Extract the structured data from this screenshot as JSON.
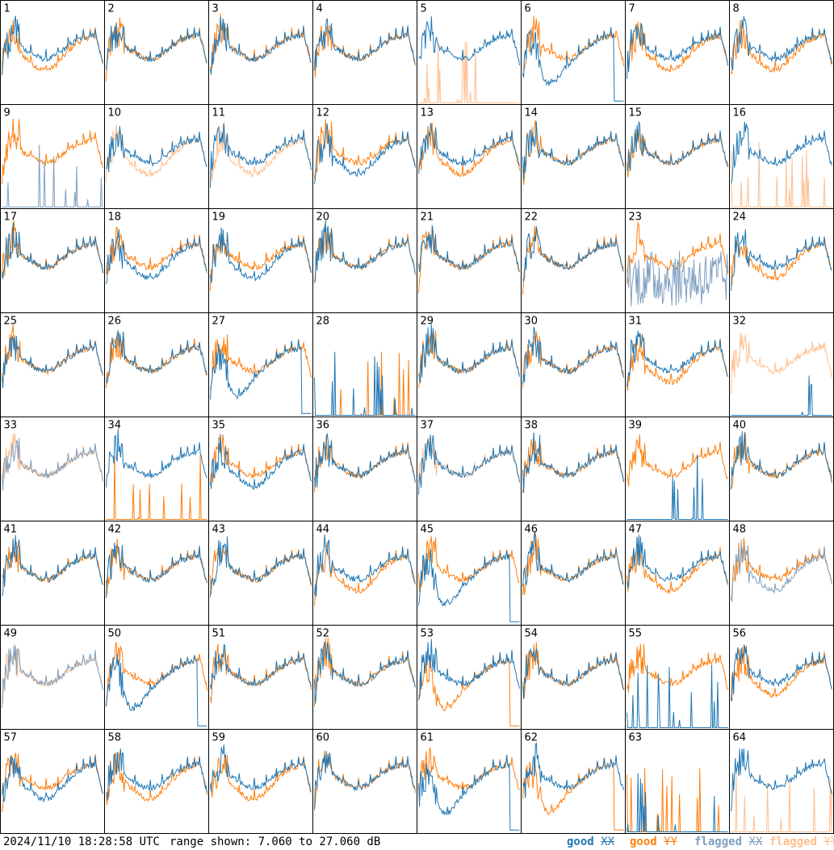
{
  "colors": {
    "good_xx": "#1f77b4",
    "good_yy": "#ff7f0e",
    "flagged_xx": "#7f9fbf",
    "flagged_yy": "#ffbf8f",
    "border": "#000000"
  },
  "footer": {
    "timestamp": "2024/11/10 18:28:58 UTC",
    "range": "range shown: 7.060 to 27.060 dB"
  },
  "legend": [
    {
      "prefix": "good",
      "pol": "XX",
      "color": "#1f77b4"
    },
    {
      "prefix": "good",
      "pol": "YY",
      "color": "#ff7f0e"
    },
    {
      "prefix": "flagged",
      "pol": "XX",
      "color": "#7f9fbf"
    },
    {
      "prefix": "flagged",
      "pol": "YY",
      "color": "#ffbf8f"
    }
  ],
  "chart_data": {
    "type": "line",
    "ylim": [
      7.06,
      27.06
    ],
    "panels": [
      {
        "label": "1",
        "xx": {
          "s": "normal",
          "f": false
        },
        "yy": {
          "s": "dip",
          "f": false
        }
      },
      {
        "label": "2",
        "xx": {
          "s": "normal",
          "f": false
        },
        "yy": {
          "s": "normal",
          "f": false
        }
      },
      {
        "label": "3",
        "xx": {
          "s": "normal",
          "f": false
        },
        "yy": {
          "s": "normal",
          "f": false
        }
      },
      {
        "label": "4",
        "xx": {
          "s": "normal",
          "f": false
        },
        "yy": {
          "s": "normal",
          "f": false
        }
      },
      {
        "label": "5",
        "xx": {
          "s": "normal",
          "f": false
        },
        "yy": {
          "s": "dead",
          "f": true
        }
      },
      {
        "label": "6",
        "xx": {
          "s": "deepdip",
          "f": false
        },
        "yy": {
          "s": "normal",
          "f": false
        }
      },
      {
        "label": "7",
        "xx": {
          "s": "normal",
          "f": false
        },
        "yy": {
          "s": "dip",
          "f": false
        }
      },
      {
        "label": "8",
        "xx": {
          "s": "normal",
          "f": false
        },
        "yy": {
          "s": "dip",
          "f": false
        }
      },
      {
        "label": "9",
        "xx": {
          "s": "dead",
          "f": true
        },
        "yy": {
          "s": "normal",
          "f": false
        }
      },
      {
        "label": "10",
        "xx": {
          "s": "normal",
          "f": false
        },
        "yy": {
          "s": "dip",
          "f": true
        }
      },
      {
        "label": "11",
        "xx": {
          "s": "normal",
          "f": false
        },
        "yy": {
          "s": "dip",
          "f": true
        }
      },
      {
        "label": "12",
        "xx": {
          "s": "dip",
          "f": false
        },
        "yy": {
          "s": "normal",
          "f": false
        }
      },
      {
        "label": "13",
        "xx": {
          "s": "normal",
          "f": false
        },
        "yy": {
          "s": "dip",
          "f": false
        }
      },
      {
        "label": "14",
        "xx": {
          "s": "normal",
          "f": false
        },
        "yy": {
          "s": "normal",
          "f": false
        }
      },
      {
        "label": "15",
        "xx": {
          "s": "normal",
          "f": false
        },
        "yy": {
          "s": "normal",
          "f": false
        }
      },
      {
        "label": "16",
        "xx": {
          "s": "normal",
          "f": false
        },
        "yy": {
          "s": "dead",
          "f": true
        }
      },
      {
        "label": "17",
        "xx": {
          "s": "normal",
          "f": false
        },
        "yy": {
          "s": "normal",
          "f": false
        }
      },
      {
        "label": "18",
        "xx": {
          "s": "dip",
          "f": false
        },
        "yy": {
          "s": "normal",
          "f": false
        }
      },
      {
        "label": "19",
        "xx": {
          "s": "dip",
          "f": false
        },
        "yy": {
          "s": "normal",
          "f": false
        }
      },
      {
        "label": "20",
        "xx": {
          "s": "normal",
          "f": false
        },
        "yy": {
          "s": "normal",
          "f": false
        }
      },
      {
        "label": "21",
        "xx": {
          "s": "normal",
          "f": false
        },
        "yy": {
          "s": "normal",
          "f": false
        }
      },
      {
        "label": "22",
        "xx": {
          "s": "normal",
          "f": false
        },
        "yy": {
          "s": "normal",
          "f": false
        }
      },
      {
        "label": "23",
        "xx": {
          "s": "noisy",
          "f": true
        },
        "yy": {
          "s": "normal",
          "f": false
        }
      },
      {
        "label": "24",
        "xx": {
          "s": "normal",
          "f": false
        },
        "yy": {
          "s": "dip",
          "f": false
        }
      },
      {
        "label": "25",
        "xx": {
          "s": "normal",
          "f": false
        },
        "yy": {
          "s": "normal",
          "f": false
        }
      },
      {
        "label": "26",
        "xx": {
          "s": "normal",
          "f": false
        },
        "yy": {
          "s": "normal",
          "f": false
        }
      },
      {
        "label": "27",
        "xx": {
          "s": "deepdip",
          "f": false
        },
        "yy": {
          "s": "normal",
          "f": false
        }
      },
      {
        "label": "28",
        "xx": {
          "s": "dead",
          "f": false
        },
        "yy": {
          "s": "dead",
          "f": false
        }
      },
      {
        "label": "29",
        "xx": {
          "s": "normal",
          "f": false
        },
        "yy": {
          "s": "normal",
          "f": false
        }
      },
      {
        "label": "30",
        "xx": {
          "s": "normal",
          "f": false
        },
        "yy": {
          "s": "normal",
          "f": false
        }
      },
      {
        "label": "31",
        "xx": {
          "s": "normal",
          "f": false
        },
        "yy": {
          "s": "dip",
          "f": false
        }
      },
      {
        "label": "32",
        "xx": {
          "s": "dead",
          "f": false
        },
        "yy": {
          "s": "normal",
          "f": true
        }
      },
      {
        "label": "33",
        "xx": {
          "s": "normal",
          "f": true
        },
        "yy": {
          "s": "normal",
          "f": true
        }
      },
      {
        "label": "34",
        "xx": {
          "s": "normal",
          "f": false
        },
        "yy": {
          "s": "dead",
          "f": false
        }
      },
      {
        "label": "35",
        "xx": {
          "s": "dip",
          "f": false
        },
        "yy": {
          "s": "normal",
          "f": false
        }
      },
      {
        "label": "36",
        "xx": {
          "s": "normal",
          "f": false
        },
        "yy": {
          "s": "normal",
          "f": false
        }
      },
      {
        "label": "37",
        "xx": {
          "s": "normal",
          "f": false
        },
        "yy": {
          "s": "normal",
          "f": true
        }
      },
      {
        "label": "38",
        "xx": {
          "s": "normal",
          "f": false
        },
        "yy": {
          "s": "normal",
          "f": false
        }
      },
      {
        "label": "39",
        "xx": {
          "s": "dead",
          "f": false
        },
        "yy": {
          "s": "normal",
          "f": false
        }
      },
      {
        "label": "40",
        "xx": {
          "s": "normal",
          "f": false
        },
        "yy": {
          "s": "normal",
          "f": false
        }
      },
      {
        "label": "41",
        "xx": {
          "s": "normal",
          "f": false
        },
        "yy": {
          "s": "normal",
          "f": false
        }
      },
      {
        "label": "42",
        "xx": {
          "s": "normal",
          "f": false
        },
        "yy": {
          "s": "normal",
          "f": false
        }
      },
      {
        "label": "43",
        "xx": {
          "s": "normal",
          "f": false
        },
        "yy": {
          "s": "normal",
          "f": false
        }
      },
      {
        "label": "44",
        "xx": {
          "s": "normal",
          "f": false
        },
        "yy": {
          "s": "dip",
          "f": false
        }
      },
      {
        "label": "45",
        "xx": {
          "s": "deepdip",
          "f": false
        },
        "yy": {
          "s": "normal",
          "f": false
        }
      },
      {
        "label": "46",
        "xx": {
          "s": "normal",
          "f": false
        },
        "yy": {
          "s": "normal",
          "f": false
        }
      },
      {
        "label": "47",
        "xx": {
          "s": "normal",
          "f": false
        },
        "yy": {
          "s": "dip",
          "f": false
        }
      },
      {
        "label": "48",
        "xx": {
          "s": "dip",
          "f": true
        },
        "yy": {
          "s": "normal",
          "f": false
        }
      },
      {
        "label": "49",
        "xx": {
          "s": "normal",
          "f": true
        },
        "yy": {
          "s": "normal",
          "f": true
        }
      },
      {
        "label": "50",
        "xx": {
          "s": "deepdip",
          "f": false
        },
        "yy": {
          "s": "normal",
          "f": false
        }
      },
      {
        "label": "51",
        "xx": {
          "s": "normal",
          "f": false
        },
        "yy": {
          "s": "normal",
          "f": false
        }
      },
      {
        "label": "52",
        "xx": {
          "s": "normal",
          "f": false
        },
        "yy": {
          "s": "normal",
          "f": false
        }
      },
      {
        "label": "53",
        "xx": {
          "s": "normal",
          "f": false
        },
        "yy": {
          "s": "deepdip",
          "f": false
        }
      },
      {
        "label": "54",
        "xx": {
          "s": "normal",
          "f": false
        },
        "yy": {
          "s": "normal",
          "f": false
        }
      },
      {
        "label": "55",
        "xx": {
          "s": "dead",
          "f": false
        },
        "yy": {
          "s": "normal",
          "f": false
        }
      },
      {
        "label": "56",
        "xx": {
          "s": "normal",
          "f": false
        },
        "yy": {
          "s": "dip",
          "f": false
        }
      },
      {
        "label": "57",
        "xx": {
          "s": "dip",
          "f": false
        },
        "yy": {
          "s": "normal",
          "f": false
        }
      },
      {
        "label": "58",
        "xx": {
          "s": "normal",
          "f": false
        },
        "yy": {
          "s": "dip",
          "f": false
        }
      },
      {
        "label": "59",
        "xx": {
          "s": "normal",
          "f": false
        },
        "yy": {
          "s": "dip",
          "f": false
        }
      },
      {
        "label": "60",
        "xx": {
          "s": "normal",
          "f": false
        },
        "yy": {
          "s": "normal",
          "f": false
        }
      },
      {
        "label": "61",
        "xx": {
          "s": "deepdip",
          "f": false
        },
        "yy": {
          "s": "normal",
          "f": false
        }
      },
      {
        "label": "62",
        "xx": {
          "s": "normal",
          "f": false
        },
        "yy": {
          "s": "deepdip",
          "f": false
        }
      },
      {
        "label": "63",
        "xx": {
          "s": "dead",
          "f": false
        },
        "yy": {
          "s": "dead",
          "f": false
        }
      },
      {
        "label": "64",
        "xx": {
          "s": "normal",
          "f": false
        },
        "yy": {
          "s": "dead",
          "f": true
        }
      }
    ]
  }
}
